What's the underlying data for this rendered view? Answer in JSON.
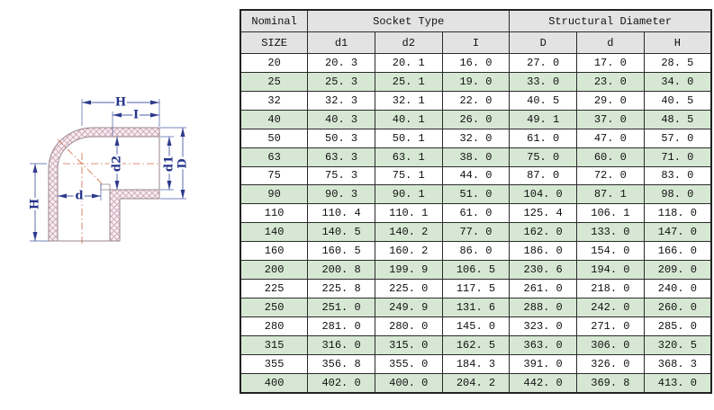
{
  "drawing": {
    "title": "90-degree elbow pipe fitting cross-section",
    "labels": {
      "h_top": "H",
      "i": "I",
      "d2": "d2",
      "d1": "d1",
      "big_d": "D",
      "h_left": "H",
      "d": "d"
    },
    "colors": {
      "dimension_line": "#4d5da5",
      "dimension_text": "#26348c",
      "centerline": "#cf6a45",
      "hatch_line": "#c9a2b2",
      "hatch_bg": "#f8eef2",
      "outline": "#998590"
    }
  },
  "table": {
    "header": {
      "nominal": "Nominal",
      "size": "SIZE",
      "socket_type": "Socket Type",
      "structural_diameter": "Structural Diameter",
      "sub_columns": [
        "d1",
        "d2",
        "I",
        "D",
        "d",
        "H"
      ]
    },
    "colors": {
      "header_bg": "#e3e3e3",
      "green_row_bg": "#d6e8d3",
      "border": "#2b2b2b"
    },
    "rows": [
      [
        "20",
        "20. 3",
        "20. 1",
        "16. 0",
        "27. 0",
        "17. 0",
        "28. 5"
      ],
      [
        "25",
        "25. 3",
        "25. 1",
        "19. 0",
        "33. 0",
        "23. 0",
        "34. 0"
      ],
      [
        "32",
        "32. 3",
        "32. 1",
        "22. 0",
        "40. 5",
        "29. 0",
        "40. 5"
      ],
      [
        "40",
        "40. 3",
        "40. 1",
        "26. 0",
        "49. 1",
        "37. 0",
        "48. 5"
      ],
      [
        "50",
        "50. 3",
        "50. 1",
        "32. 0",
        "61. 0",
        "47. 0",
        "57. 0"
      ],
      [
        "63",
        "63. 3",
        "63. 1",
        "38. 0",
        "75. 0",
        "60. 0",
        "71. 0"
      ],
      [
        "75",
        "75. 3",
        "75. 1",
        "44. 0",
        "87. 0",
        "72. 0",
        "83. 0"
      ],
      [
        "90",
        "90. 3",
        "90. 1",
        "51. 0",
        "104. 0",
        "87. 1",
        "98. 0"
      ],
      [
        "110",
        "110. 4",
        "110. 1",
        "61. 0",
        "125. 4",
        "106. 1",
        "118. 0"
      ],
      [
        "140",
        "140. 5",
        "140. 2",
        "77. 0",
        "162. 0",
        "133. 0",
        "147. 0"
      ],
      [
        "160",
        "160. 5",
        "160. 2",
        "86. 0",
        "186. 0",
        "154. 0",
        "166. 0"
      ],
      [
        "200",
        "200. 8",
        "199. 9",
        "106. 5",
        "230. 6",
        "194. 0",
        "209. 0"
      ],
      [
        "225",
        "225. 8",
        "225. 0",
        "117. 5",
        "261. 0",
        "218. 0",
        "240. 0"
      ],
      [
        "250",
        "251. 0",
        "249. 9",
        "131. 6",
        "288. 0",
        "242. 0",
        "260. 0"
      ],
      [
        "280",
        "281. 0",
        "280. 0",
        "145. 0",
        "323. 0",
        "271. 0",
        "285. 0"
      ],
      [
        "315",
        "316. 0",
        "315. 0",
        "162. 5",
        "363. 0",
        "306. 0",
        "320. 5"
      ],
      [
        "355",
        "356. 8",
        "355. 0",
        "184. 3",
        "391. 0",
        "326. 0",
        "368. 3"
      ],
      [
        "400",
        "402. 0",
        "400. 0",
        "204. 2",
        "442. 0",
        "369. 8",
        "413. 0"
      ]
    ]
  }
}
